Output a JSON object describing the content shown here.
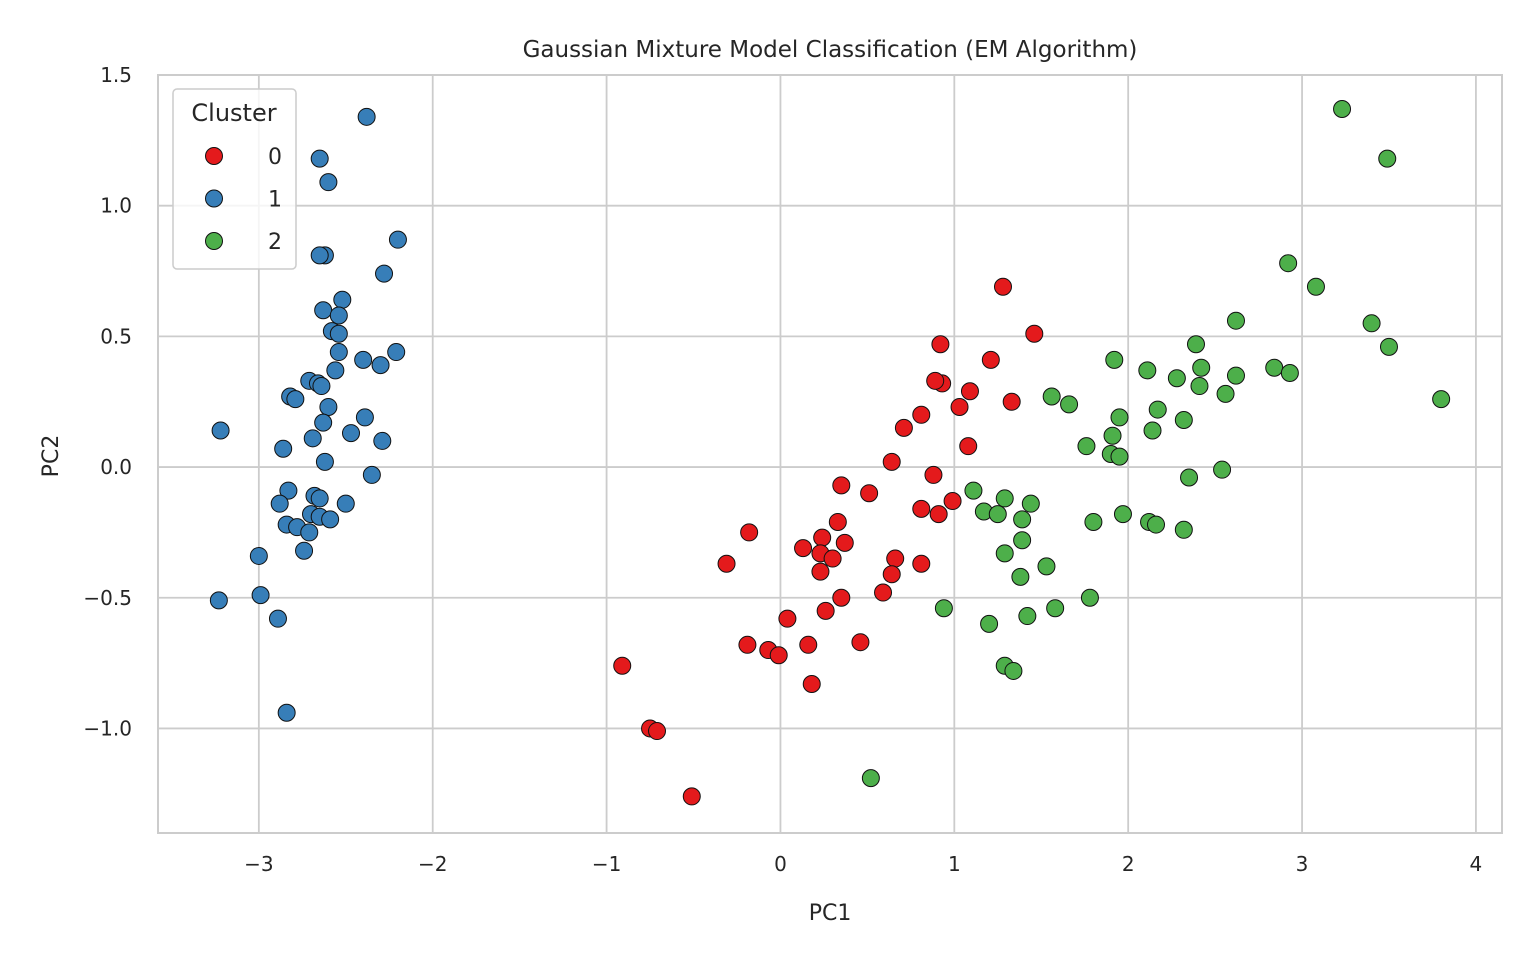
{
  "chart_data": {
    "type": "scatter",
    "title": "Gaussian Mixture Model Classification (EM Algorithm)",
    "xlabel": "PC1",
    "ylabel": "PC2",
    "xlim": [
      -3.58,
      4.15
    ],
    "ylim": [
      -1.4,
      1.5
    ],
    "xticks": [
      -3,
      -2,
      -1,
      0,
      1,
      2,
      3,
      4
    ],
    "xtick_labels": [
      "−3",
      "−2",
      "−1",
      "0",
      "1",
      "2",
      "3",
      "4"
    ],
    "yticks": [
      -1.0,
      -0.5,
      0.0,
      0.5,
      1.0,
      1.5
    ],
    "ytick_labels": [
      "−1.0",
      "−0.5",
      "0.0",
      "0.5",
      "1.0",
      "1.5"
    ],
    "grid": true,
    "legend": {
      "title": "Cluster",
      "position": "top-left"
    },
    "series": [
      {
        "name": "0",
        "color": "#e41a1c",
        "points": [
          [
            1.28,
            0.69
          ],
          [
            1.46,
            0.51
          ],
          [
            0.92,
            0.47
          ],
          [
            1.21,
            0.41
          ],
          [
            0.93,
            0.32
          ],
          [
            0.89,
            0.33
          ],
          [
            1.09,
            0.29
          ],
          [
            1.33,
            0.25
          ],
          [
            1.03,
            0.23
          ],
          [
            0.81,
            0.2
          ],
          [
            0.71,
            0.15
          ],
          [
            1.08,
            0.08
          ],
          [
            0.64,
            0.02
          ],
          [
            0.88,
            -0.03
          ],
          [
            0.35,
            -0.07
          ],
          [
            0.51,
            -0.1
          ],
          [
            0.99,
            -0.13
          ],
          [
            0.81,
            -0.16
          ],
          [
            0.91,
            -0.18
          ],
          [
            0.33,
            -0.21
          ],
          [
            -0.18,
            -0.25
          ],
          [
            0.24,
            -0.27
          ],
          [
            0.37,
            -0.29
          ],
          [
            0.13,
            -0.31
          ],
          [
            0.23,
            -0.33
          ],
          [
            0.3,
            -0.35
          ],
          [
            0.66,
            -0.35
          ],
          [
            -0.31,
            -0.37
          ],
          [
            0.81,
            -0.37
          ],
          [
            0.23,
            -0.4
          ],
          [
            0.64,
            -0.41
          ],
          [
            0.59,
            -0.48
          ],
          [
            0.35,
            -0.5
          ],
          [
            0.26,
            -0.55
          ],
          [
            0.04,
            -0.58
          ],
          [
            0.46,
            -0.67
          ],
          [
            -0.19,
            -0.68
          ],
          [
            0.16,
            -0.68
          ],
          [
            -0.07,
            -0.7
          ],
          [
            -0.01,
            -0.72
          ],
          [
            -0.91,
            -0.76
          ],
          [
            0.18,
            -0.83
          ],
          [
            -0.75,
            -1.0
          ],
          [
            -0.71,
            -1.01
          ],
          [
            -0.51,
            -1.26
          ]
        ]
      },
      {
        "name": "1",
        "color": "#377eb8",
        "points": [
          [
            -2.38,
            1.34
          ],
          [
            -2.65,
            1.18
          ],
          [
            -2.6,
            1.09
          ],
          [
            -2.2,
            0.87
          ],
          [
            -2.62,
            0.81
          ],
          [
            -2.65,
            0.81
          ],
          [
            -2.28,
            0.74
          ],
          [
            -2.52,
            0.64
          ],
          [
            -2.63,
            0.6
          ],
          [
            -2.54,
            0.58
          ],
          [
            -2.58,
            0.52
          ],
          [
            -2.54,
            0.51
          ],
          [
            -2.54,
            0.44
          ],
          [
            -2.21,
            0.44
          ],
          [
            -2.4,
            0.41
          ],
          [
            -2.3,
            0.39
          ],
          [
            -2.56,
            0.37
          ],
          [
            -2.71,
            0.33
          ],
          [
            -2.66,
            0.32
          ],
          [
            -2.64,
            0.31
          ],
          [
            -2.82,
            0.27
          ],
          [
            -2.79,
            0.26
          ],
          [
            -2.6,
            0.23
          ],
          [
            -2.39,
            0.19
          ],
          [
            -2.63,
            0.17
          ],
          [
            -2.47,
            0.13
          ],
          [
            -3.22,
            0.14
          ],
          [
            -2.69,
            0.11
          ],
          [
            -2.29,
            0.1
          ],
          [
            -2.86,
            0.07
          ],
          [
            -2.62,
            0.02
          ],
          [
            -2.35,
            -0.03
          ],
          [
            -2.83,
            -0.09
          ],
          [
            -2.68,
            -0.11
          ],
          [
            -2.65,
            -0.12
          ],
          [
            -2.88,
            -0.14
          ],
          [
            -2.5,
            -0.14
          ],
          [
            -2.7,
            -0.18
          ],
          [
            -2.65,
            -0.19
          ],
          [
            -2.59,
            -0.2
          ],
          [
            -2.84,
            -0.22
          ],
          [
            -2.78,
            -0.23
          ],
          [
            -2.71,
            -0.25
          ],
          [
            -2.74,
            -0.32
          ],
          [
            -3.0,
            -0.34
          ],
          [
            -2.99,
            -0.49
          ],
          [
            -3.23,
            -0.51
          ],
          [
            -2.89,
            -0.58
          ],
          [
            -2.84,
            -0.94
          ]
        ]
      },
      {
        "name": "2",
        "color": "#4daf4a",
        "points": [
          [
            3.23,
            1.37
          ],
          [
            3.49,
            1.18
          ],
          [
            2.92,
            0.78
          ],
          [
            3.08,
            0.69
          ],
          [
            2.62,
            0.56
          ],
          [
            3.4,
            0.55
          ],
          [
            2.39,
            0.47
          ],
          [
            3.5,
            0.46
          ],
          [
            1.92,
            0.41
          ],
          [
            2.42,
            0.38
          ],
          [
            2.11,
            0.37
          ],
          [
            2.84,
            0.38
          ],
          [
            2.93,
            0.36
          ],
          [
            2.62,
            0.35
          ],
          [
            2.28,
            0.34
          ],
          [
            2.41,
            0.31
          ],
          [
            2.56,
            0.28
          ],
          [
            1.56,
            0.27
          ],
          [
            3.8,
            0.26
          ],
          [
            1.66,
            0.24
          ],
          [
            2.17,
            0.22
          ],
          [
            1.95,
            0.19
          ],
          [
            2.32,
            0.18
          ],
          [
            2.14,
            0.14
          ],
          [
            1.91,
            0.12
          ],
          [
            1.76,
            0.08
          ],
          [
            1.9,
            0.05
          ],
          [
            1.95,
            0.04
          ],
          [
            2.54,
            -0.01
          ],
          [
            2.35,
            -0.04
          ],
          [
            1.11,
            -0.09
          ],
          [
            1.29,
            -0.12
          ],
          [
            1.44,
            -0.14
          ],
          [
            1.17,
            -0.17
          ],
          [
            1.25,
            -0.18
          ],
          [
            1.97,
            -0.18
          ],
          [
            1.39,
            -0.2
          ],
          [
            2.12,
            -0.21
          ],
          [
            1.8,
            -0.21
          ],
          [
            2.16,
            -0.22
          ],
          [
            2.32,
            -0.24
          ],
          [
            1.39,
            -0.28
          ],
          [
            1.29,
            -0.33
          ],
          [
            1.53,
            -0.38
          ],
          [
            1.38,
            -0.42
          ],
          [
            1.78,
            -0.5
          ],
          [
            0.94,
            -0.54
          ],
          [
            1.58,
            -0.54
          ],
          [
            1.42,
            -0.57
          ],
          [
            1.2,
            -0.6
          ],
          [
            1.29,
            -0.76
          ],
          [
            1.34,
            -0.78
          ],
          [
            0.52,
            -1.19
          ]
        ]
      }
    ]
  }
}
